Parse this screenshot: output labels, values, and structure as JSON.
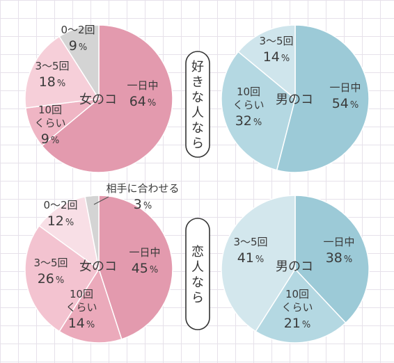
{
  "chart_data": [
    {
      "type": "pie",
      "center_label": "女のコ",
      "slices": [
        {
          "lines": [
            "一日中"
          ],
          "value": 64,
          "color": "#e39aae"
        },
        {
          "lines": [
            "10回",
            "くらい"
          ],
          "value": 9,
          "color": "#efb5c4"
        },
        {
          "lines": [
            "3～5回"
          ],
          "value": 18,
          "color": "#f6cfd9"
        },
        {
          "lines": [
            "0～2回"
          ],
          "value": 9,
          "color": "#d4d4d4"
        }
      ]
    },
    {
      "type": "pie",
      "center_label": "男のコ",
      "slices": [
        {
          "lines": [
            "一日中"
          ],
          "value": 54,
          "color": "#9ccad7"
        },
        {
          "lines": [
            "10回",
            "くらい"
          ],
          "value": 32,
          "color": "#b4d8e2"
        },
        {
          "lines": [
            "3～5回"
          ],
          "value": 14,
          "color": "#cfe5ec"
        }
      ]
    },
    {
      "type": "pie",
      "center_label": "女のコ",
      "slices": [
        {
          "lines": [
            "一日中"
          ],
          "value": 45,
          "color": "#e39aae"
        },
        {
          "lines": [
            "10回",
            "くらい"
          ],
          "value": 14,
          "color": "#ebaabb"
        },
        {
          "lines": [
            "3～5回"
          ],
          "value": 26,
          "color": "#f3c3d0"
        },
        {
          "lines": [
            "0～2回"
          ],
          "value": 12,
          "color": "#f8dfe6"
        },
        {
          "lines": [
            "相手に合わせる"
          ],
          "value": 3,
          "color": "#d4d4d4"
        }
      ]
    },
    {
      "type": "pie",
      "center_label": "男のコ",
      "slices": [
        {
          "lines": [
            "一日中"
          ],
          "value": 38,
          "color": "#9ccad7"
        },
        {
          "lines": [
            "10回",
            "くらい"
          ],
          "value": 21,
          "color": "#b4d8e2"
        },
        {
          "lines": [
            "3～5回"
          ],
          "value": 41,
          "color": "#d3e7ed"
        }
      ]
    }
  ],
  "row_labels": [
    "好きな人なら",
    "恋人なら"
  ],
  "percent_sign": "%"
}
